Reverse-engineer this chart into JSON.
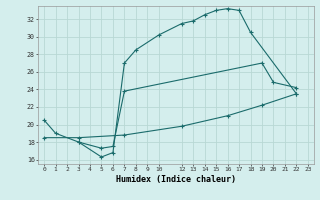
{
  "xlabel": "Humidex (Indice chaleur)",
  "bg_color": "#d4eeed",
  "grid_color": "#b8d8d4",
  "line_color": "#1a6b6b",
  "ylim": [
    15.5,
    33.5
  ],
  "xlim": [
    -0.5,
    23.5
  ],
  "yticks": [
    16,
    18,
    20,
    22,
    24,
    26,
    28,
    30,
    32
  ],
  "xticks": [
    0,
    1,
    2,
    3,
    4,
    5,
    6,
    7,
    8,
    9,
    10,
    12,
    13,
    14,
    15,
    16,
    17,
    18,
    19,
    20,
    21,
    22,
    23
  ],
  "xtick_labels": [
    "0",
    "1",
    "2",
    "3",
    "4",
    "5",
    "6",
    "7",
    "8",
    "9",
    "10",
    "12",
    "13",
    "14",
    "15",
    "16",
    "17",
    "18",
    "19",
    "20",
    "21",
    "22",
    "23"
  ],
  "line1_x": [
    0,
    1,
    3,
    5,
    6,
    7,
    8,
    10,
    12,
    13,
    14,
    15,
    16,
    17,
    18,
    22
  ],
  "line1_y": [
    20.5,
    19.0,
    18.0,
    16.3,
    16.8,
    27.0,
    28.5,
    30.2,
    31.5,
    31.8,
    32.5,
    33.0,
    33.2,
    33.0,
    30.5,
    23.5
  ],
  "line2_x": [
    3,
    5,
    6,
    7,
    19,
    20,
    22
  ],
  "line2_y": [
    18.0,
    17.3,
    17.5,
    23.8,
    27.0,
    24.8,
    24.2
  ],
  "line3_x": [
    0,
    3,
    7,
    12,
    16,
    19,
    22
  ],
  "line3_y": [
    18.5,
    18.5,
    18.8,
    19.8,
    21.0,
    22.2,
    23.5
  ]
}
